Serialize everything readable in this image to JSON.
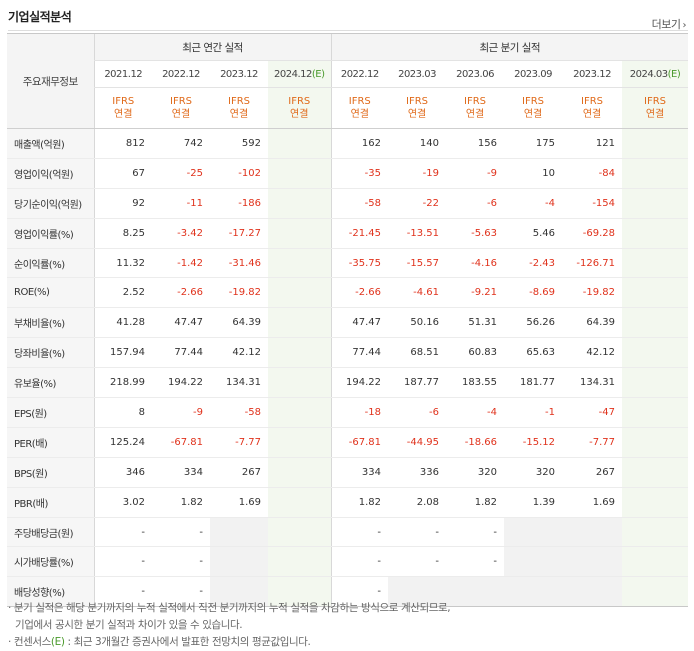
{
  "header": {
    "title": "기업실적분석",
    "more_label": "더보기",
    "more_arrow": "›"
  },
  "columns": {
    "label_header": "주요재무정보",
    "annual_group": "최근 연간 실적",
    "quarter_group": "최근 분기 실적",
    "annual_periods": [
      "2021.12",
      "2022.12",
      "2023.12",
      "2024.12"
    ],
    "quarter_periods": [
      "2022.12",
      "2023.03",
      "2023.06",
      "2023.09",
      "2023.12",
      "2024.03"
    ],
    "estimate_mark": "(E)",
    "ifrs": "IFRS",
    "consolidated": "연결"
  },
  "rows": [
    {
      "label": "매출액(억원)",
      "annual": [
        "812",
        "742",
        "592",
        ""
      ],
      "quarter": [
        "162",
        "140",
        "156",
        "175",
        "121",
        ""
      ]
    },
    {
      "label": "영업이익(억원)",
      "annual": [
        "67",
        "-25",
        "-102",
        ""
      ],
      "quarter": [
        "-35",
        "-19",
        "-9",
        "10",
        "-84",
        ""
      ]
    },
    {
      "label": "당기순이익(억원)",
      "annual": [
        "92",
        "-11",
        "-186",
        ""
      ],
      "quarter": [
        "-58",
        "-22",
        "-6",
        "-4",
        "-154",
        ""
      ]
    },
    {
      "label": "영업이익률(%)",
      "annual": [
        "8.25",
        "-3.42",
        "-17.27",
        ""
      ],
      "quarter": [
        "-21.45",
        "-13.51",
        "-5.63",
        "5.46",
        "-69.28",
        ""
      ]
    },
    {
      "label": "순이익률(%)",
      "annual": [
        "11.32",
        "-1.42",
        "-31.46",
        ""
      ],
      "quarter": [
        "-35.75",
        "-15.57",
        "-4.16",
        "-2.43",
        "-126.71",
        ""
      ]
    },
    {
      "label": "ROE(%)",
      "annual": [
        "2.52",
        "-2.66",
        "-19.82",
        ""
      ],
      "quarter": [
        "-2.66",
        "-4.61",
        "-9.21",
        "-8.69",
        "-19.82",
        ""
      ]
    },
    {
      "label": "부채비율(%)",
      "annual": [
        "41.28",
        "47.47",
        "64.39",
        ""
      ],
      "quarter": [
        "47.47",
        "50.16",
        "51.31",
        "56.26",
        "64.39",
        ""
      ]
    },
    {
      "label": "당좌비율(%)",
      "annual": [
        "157.94",
        "77.44",
        "42.12",
        ""
      ],
      "quarter": [
        "77.44",
        "68.51",
        "60.83",
        "65.63",
        "42.12",
        ""
      ]
    },
    {
      "label": "유보율(%)",
      "annual": [
        "218.99",
        "194.22",
        "134.31",
        ""
      ],
      "quarter": [
        "194.22",
        "187.77",
        "183.55",
        "181.77",
        "134.31",
        ""
      ]
    },
    {
      "label": "EPS(원)",
      "annual": [
        "8",
        "-9",
        "-58",
        ""
      ],
      "quarter": [
        "-18",
        "-6",
        "-4",
        "-1",
        "-47",
        ""
      ]
    },
    {
      "label": "PER(배)",
      "annual": [
        "125.24",
        "-67.81",
        "-7.77",
        ""
      ],
      "quarter": [
        "-67.81",
        "-44.95",
        "-18.66",
        "-15.12",
        "-7.77",
        ""
      ]
    },
    {
      "label": "BPS(원)",
      "annual": [
        "346",
        "334",
        "267",
        ""
      ],
      "quarter": [
        "334",
        "336",
        "320",
        "320",
        "267",
        ""
      ]
    },
    {
      "label": "PBR(배)",
      "annual": [
        "3.02",
        "1.82",
        "1.69",
        ""
      ],
      "quarter": [
        "1.82",
        "2.08",
        "1.82",
        "1.39",
        "1.69",
        ""
      ]
    },
    {
      "label": "주당배당금(원)",
      "annual": [
        "-",
        "-",
        "",
        ""
      ],
      "quarter": [
        "-",
        "-",
        "-",
        "",
        "",
        ""
      ]
    },
    {
      "label": "시가배당률(%)",
      "annual": [
        "-",
        "-",
        "",
        ""
      ],
      "quarter": [
        "-",
        "-",
        "-",
        "",
        "",
        ""
      ]
    },
    {
      "label": "배당성향(%)",
      "annual": [
        "-",
        "-",
        "",
        ""
      ],
      "quarter": [
        "-",
        "",
        "",
        "",
        "",
        ""
      ]
    }
  ],
  "notes": {
    "line1": "· 분기 실적은 해당 분기까지의 누적 실적에서 직전 분기까지의 누적 실적을 차감하는 방식으로 계산되므로,",
    "line2": "기업에서 공시한 분기 실적과 차이가 있을 수 있습니다.",
    "line3_prefix": "· 컨센서스",
    "line3_mark": "(E)",
    "line3_suffix": " : 최근 3개월간 증권사에서 발표한 전망치의 평균값입니다."
  },
  "colors": {
    "negative": "#e0321c",
    "ifrs": "#e06a1a",
    "estimate_bg": "#f3f8ef",
    "estimate_mark": "#4a9a2c"
  }
}
